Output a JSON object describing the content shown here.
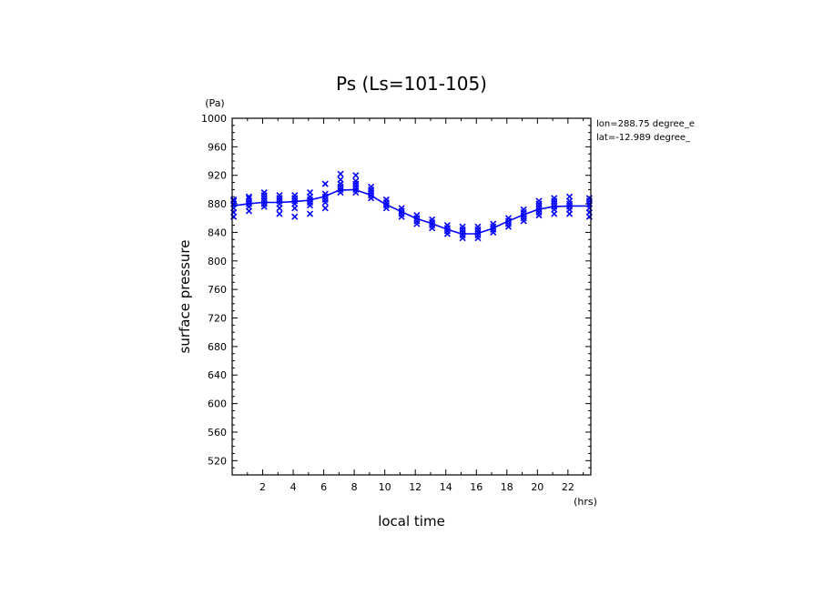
{
  "chart_data": {
    "type": "line",
    "title": "Ps (Ls=101-105)",
    "ylabel": "surface pressure",
    "yunit": "(Pa)",
    "xlabel": "local time",
    "xunit": "(hrs)",
    "annotations": [
      "lon=288.75 degree_e",
      "lat=-12.989 degree_"
    ],
    "xlim": [
      0,
      23.5
    ],
    "ylim": [
      500,
      1000
    ],
    "xticks": [
      2,
      4,
      6,
      8,
      10,
      12,
      14,
      16,
      18,
      20,
      22
    ],
    "yticks": [
      520,
      560,
      600,
      640,
      680,
      720,
      760,
      800,
      840,
      880,
      920,
      960,
      1000
    ],
    "color": "#0000ff",
    "series": [
      {
        "kind": "mean-line",
        "x": [
          0,
          1,
          2,
          3,
          4,
          5,
          6,
          7,
          8,
          9,
          10,
          11,
          12,
          13,
          14,
          15,
          16,
          17,
          18,
          19,
          20,
          21,
          22,
          23.5
        ],
        "y": [
          877,
          880,
          882,
          882,
          883,
          885,
          890,
          899,
          900,
          893,
          880,
          870,
          860,
          853,
          845,
          838,
          838,
          845,
          855,
          864,
          872,
          876,
          877,
          877
        ]
      },
      {
        "kind": "samples",
        "points": [
          [
            0.1,
            862
          ],
          [
            0.1,
            868
          ],
          [
            0.1,
            874
          ],
          [
            0.1,
            880
          ],
          [
            0.1,
            884
          ],
          [
            0.1,
            886
          ],
          [
            1.1,
            870
          ],
          [
            1.1,
            876
          ],
          [
            1.1,
            880
          ],
          [
            1.1,
            884
          ],
          [
            1.1,
            888
          ],
          [
            1.1,
            890
          ],
          [
            2.1,
            876
          ],
          [
            2.1,
            880
          ],
          [
            2.1,
            884
          ],
          [
            2.1,
            888
          ],
          [
            2.1,
            892
          ],
          [
            2.1,
            896
          ],
          [
            3.1,
            866
          ],
          [
            3.1,
            874
          ],
          [
            3.1,
            880
          ],
          [
            3.1,
            884
          ],
          [
            3.1,
            888
          ],
          [
            3.1,
            892
          ],
          [
            4.1,
            862
          ],
          [
            4.1,
            874
          ],
          [
            4.1,
            880
          ],
          [
            4.1,
            884
          ],
          [
            4.1,
            888
          ],
          [
            4.1,
            892
          ],
          [
            5.1,
            866
          ],
          [
            5.1,
            878
          ],
          [
            5.1,
            882
          ],
          [
            5.1,
            886
          ],
          [
            5.1,
            890
          ],
          [
            5.1,
            896
          ],
          [
            6.1,
            874
          ],
          [
            6.1,
            882
          ],
          [
            6.1,
            886
          ],
          [
            6.1,
            890
          ],
          [
            6.1,
            894
          ],
          [
            6.1,
            908
          ],
          [
            7.1,
            896
          ],
          [
            7.1,
            900
          ],
          [
            7.1,
            904
          ],
          [
            7.1,
            908
          ],
          [
            7.1,
            914
          ],
          [
            7.1,
            922
          ],
          [
            8.1,
            896
          ],
          [
            8.1,
            900
          ],
          [
            8.1,
            904
          ],
          [
            8.1,
            908
          ],
          [
            8.1,
            912
          ],
          [
            8.1,
            920
          ],
          [
            9.1,
            888
          ],
          [
            9.1,
            892
          ],
          [
            9.1,
            896
          ],
          [
            9.1,
            900
          ],
          [
            9.1,
            904
          ],
          [
            10.1,
            874
          ],
          [
            10.1,
            878
          ],
          [
            10.1,
            882
          ],
          [
            10.1,
            886
          ],
          [
            11.1,
            862
          ],
          [
            11.1,
            866
          ],
          [
            11.1,
            870
          ],
          [
            11.1,
            874
          ],
          [
            12.1,
            852
          ],
          [
            12.1,
            856
          ],
          [
            12.1,
            860
          ],
          [
            12.1,
            864
          ],
          [
            13.1,
            846
          ],
          [
            13.1,
            850
          ],
          [
            13.1,
            854
          ],
          [
            13.1,
            858
          ],
          [
            14.1,
            838
          ],
          [
            14.1,
            842
          ],
          [
            14.1,
            846
          ],
          [
            14.1,
            850
          ],
          [
            15.1,
            832
          ],
          [
            15.1,
            836
          ],
          [
            15.1,
            840
          ],
          [
            15.1,
            844
          ],
          [
            15.1,
            848
          ],
          [
            16.1,
            832
          ],
          [
            16.1,
            836
          ],
          [
            16.1,
            840
          ],
          [
            16.1,
            844
          ],
          [
            16.1,
            848
          ],
          [
            17.1,
            840
          ],
          [
            17.1,
            844
          ],
          [
            17.1,
            848
          ],
          [
            17.1,
            852
          ],
          [
            18.1,
            848
          ],
          [
            18.1,
            852
          ],
          [
            18.1,
            856
          ],
          [
            18.1,
            860
          ],
          [
            19.1,
            856
          ],
          [
            19.1,
            860
          ],
          [
            19.1,
            864
          ],
          [
            19.1,
            868
          ],
          [
            19.1,
            872
          ],
          [
            20.1,
            864
          ],
          [
            20.1,
            868
          ],
          [
            20.1,
            872
          ],
          [
            20.1,
            876
          ],
          [
            20.1,
            880
          ],
          [
            20.1,
            884
          ],
          [
            21.1,
            866
          ],
          [
            21.1,
            872
          ],
          [
            21.1,
            876
          ],
          [
            21.1,
            880
          ],
          [
            21.1,
            884
          ],
          [
            21.1,
            888
          ],
          [
            22.1,
            866
          ],
          [
            22.1,
            872
          ],
          [
            22.1,
            876
          ],
          [
            22.1,
            880
          ],
          [
            22.1,
            884
          ],
          [
            22.1,
            890
          ],
          [
            23.4,
            862
          ],
          [
            23.4,
            868
          ],
          [
            23.4,
            874
          ],
          [
            23.4,
            880
          ],
          [
            23.4,
            884
          ],
          [
            23.4,
            888
          ]
        ]
      }
    ]
  }
}
